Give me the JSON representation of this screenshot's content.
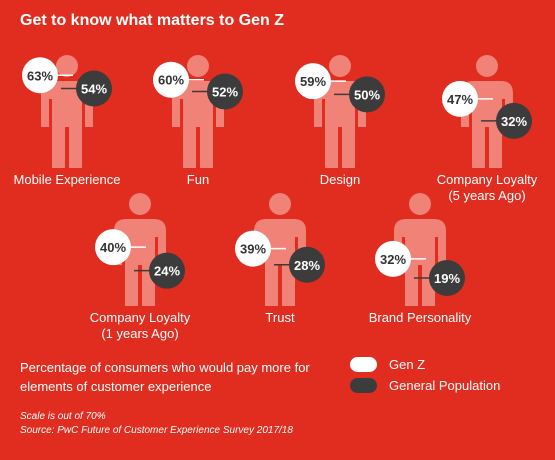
{
  "title": "Get to know what matters to Gen Z",
  "description": "Percentage of consumers who would pay more for elements of customer experience",
  "legend": [
    {
      "label": "Gen Z",
      "color": "#ffffff"
    },
    {
      "label": "General Population",
      "color": "#3c3c3c"
    }
  ],
  "notes": {
    "scale": "Scale is out of 70%",
    "source": "Source: PwC Future of Customer Experience Survey 2017/18"
  },
  "colors": {
    "background": "#e12d1f",
    "figure": "#f08278",
    "genz": "#ffffff",
    "general": "#3c3c3c",
    "genz_text": "#333333",
    "general_text": "#ffffff"
  },
  "chart_data": {
    "type": "pictograph",
    "scale_max": 70,
    "unit": "%",
    "categories": [
      {
        "label_lines": [
          "Mobile Experience"
        ],
        "genz": 63,
        "general": 54
      },
      {
        "label_lines": [
          "Fun"
        ],
        "genz": 60,
        "general": 52
      },
      {
        "label_lines": [
          "Design"
        ],
        "genz": 59,
        "general": 50
      },
      {
        "label_lines": [
          "Company Loyalty",
          "(5 years Ago)"
        ],
        "genz": 47,
        "general": 32
      },
      {
        "label_lines": [
          "Company Loyalty",
          "(1 years Ago)"
        ],
        "genz": 40,
        "general": 24
      },
      {
        "label_lines": [
          "Trust"
        ],
        "genz": 39,
        "general": 28
      },
      {
        "label_lines": [
          "Brand Personality"
        ],
        "genz": 32,
        "general": 19
      }
    ],
    "series": [
      {
        "name": "Gen Z",
        "key": "genz"
      },
      {
        "name": "General Population",
        "key": "general"
      }
    ]
  }
}
